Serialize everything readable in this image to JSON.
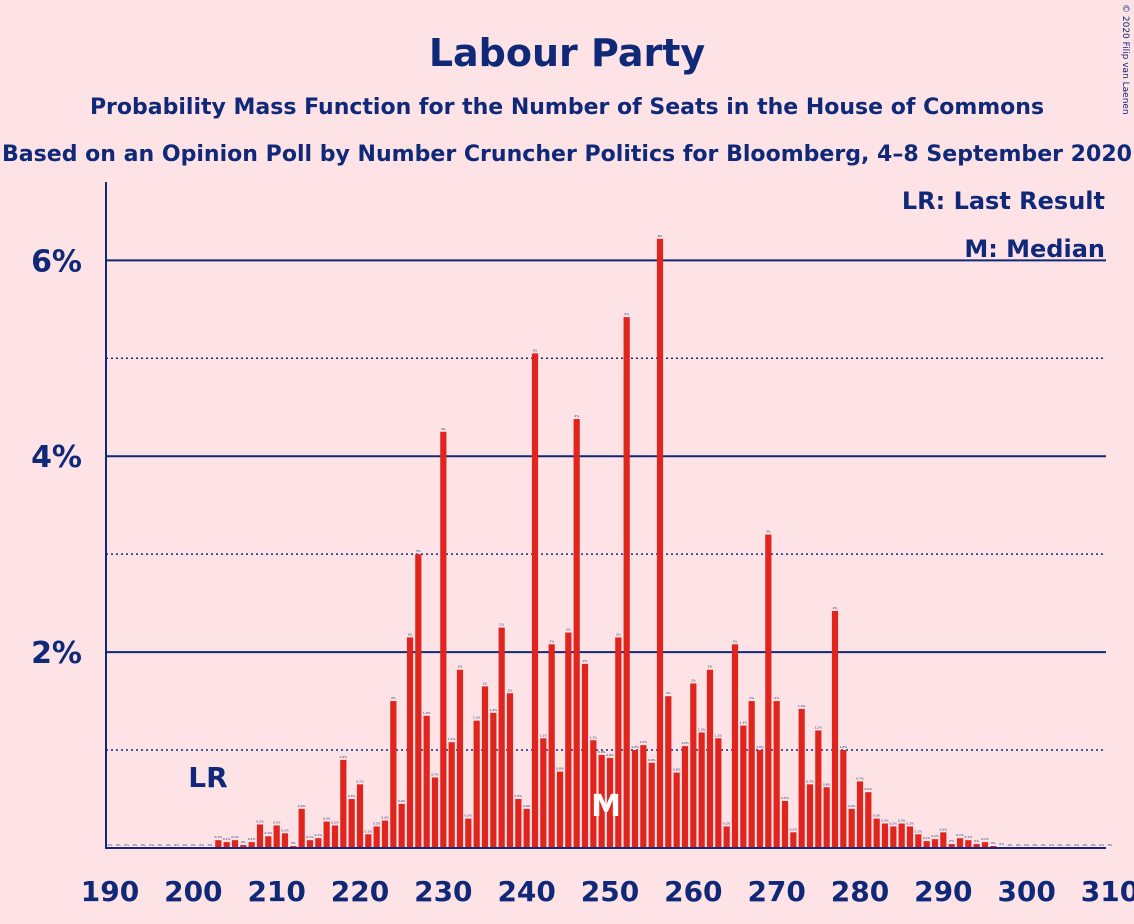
{
  "title": "Labour Party",
  "subtitle1": "Probability Mass Function for the Number of Seats in the House of Commons",
  "subtitle2": "Based on an Opinion Poll by Number Cruncher Politics for Bloomberg, 4–8 September 2020",
  "copyright": "© 2020 Filip van Laenen",
  "legend": {
    "lr": "LR: Last Result",
    "median": "M: Median"
  },
  "markers": {
    "lr_label": "LR",
    "lr_seat": 202,
    "median_label": "M",
    "median_seat": 250
  },
  "colors": {
    "bar": "#E0241E",
    "axis": "#0F2878",
    "background": "#FDE3E6"
  },
  "chart_data": {
    "type": "bar",
    "xlabel": "",
    "ylabel": "",
    "xlim": [
      190,
      310
    ],
    "ylim": [
      0,
      6.8
    ],
    "x_ticks": [
      "190",
      "200",
      "210",
      "220",
      "230",
      "240",
      "250",
      "260",
      "270",
      "280",
      "290",
      "300",
      "310"
    ],
    "y_ticks": [
      {
        "value": 2,
        "label": "2%"
      },
      {
        "value": 4,
        "label": "4%"
      },
      {
        "value": 6,
        "label": "6%"
      }
    ],
    "minor_gridlines": [
      1,
      3,
      5
    ],
    "seats": [
      190,
      191,
      192,
      193,
      194,
      195,
      196,
      197,
      198,
      199,
      200,
      201,
      202,
      203,
      204,
      205,
      206,
      207,
      208,
      209,
      210,
      211,
      212,
      213,
      214,
      215,
      216,
      217,
      218,
      219,
      220,
      221,
      222,
      223,
      224,
      225,
      226,
      227,
      228,
      229,
      230,
      231,
      232,
      233,
      234,
      235,
      236,
      237,
      238,
      239,
      240,
      241,
      242,
      243,
      244,
      245,
      246,
      247,
      248,
      249,
      250,
      251,
      252,
      253,
      254,
      255,
      256,
      257,
      258,
      259,
      260,
      261,
      262,
      263,
      264,
      265,
      266,
      267,
      268,
      269,
      270,
      271,
      272,
      273,
      274,
      275,
      276,
      277,
      278,
      279,
      280,
      281,
      282,
      283,
      284,
      285,
      286,
      287,
      288,
      289,
      290,
      291,
      292,
      293,
      294,
      295,
      296,
      297,
      298,
      299,
      300,
      301,
      302,
      303,
      304,
      305,
      306,
      307,
      308,
      309,
      310
    ],
    "values": [
      0,
      0,
      0,
      0,
      0,
      0,
      0,
      0,
      0,
      0,
      0,
      0,
      0,
      0.08,
      0.06,
      0.08,
      0.03,
      0.06,
      0.24,
      0.12,
      0.23,
      0.15,
      0.02,
      0.4,
      0.08,
      0.1,
      0.27,
      0.23,
      0.9,
      0.5,
      0.65,
      0.14,
      0.22,
      0.28,
      1.5,
      0.45,
      2.15,
      3,
      1.35,
      0.72,
      4.25,
      1.08,
      1.82,
      0.3,
      1.3,
      1.65,
      1.38,
      2.25,
      1.58,
      0.5,
      0.4,
      5.05,
      1.12,
      2.08,
      0.78,
      2.2,
      4.38,
      1.88,
      1.1,
      0.95,
      0.92,
      2.15,
      5.42,
      1,
      1.05,
      0.87,
      6.22,
      1.55,
      0.77,
      1.04,
      1.68,
      1.18,
      1.82,
      1.12,
      0.22,
      2.08,
      1.25,
      1.5,
      1,
      3.2,
      1.5,
      0.48,
      0.16,
      1.42,
      0.65,
      1.2,
      0.62,
      2.42,
      1,
      0.4,
      0.68,
      0.57,
      0.3,
      0.25,
      0.22,
      0.25,
      0.22,
      0.14,
      0.07,
      0.09,
      0.16,
      0.04,
      0.1,
      0.08,
      0.04,
      0.06,
      0.02,
      0.01,
      0,
      0,
      0,
      0,
      0,
      0,
      0,
      0,
      0,
      0,
      0,
      0,
      0
    ],
    "data_labels": [
      "0%",
      "0%",
      "0%",
      "0%",
      "0%",
      "0%",
      "0%",
      "0%",
      "0%",
      "0%",
      "0%",
      "0%",
      "0%",
      "0.1%",
      "0.1%",
      "0.1%",
      "0%",
      "0.1%",
      "0.2%",
      "0.1%",
      "0.2%",
      "0.2%",
      "0%",
      "0.4%",
      "0.1%",
      "0.1%",
      "0.3%",
      "0.2%",
      "0.9%",
      "0.5%",
      "0.7%",
      "0.1%",
      "0.2%",
      "0.3%",
      "2%",
      "0.4%",
      "2%",
      "3%",
      "1.4%",
      "0.7%",
      "4%",
      "1.1%",
      "2%",
      "0.3%",
      "1.3%",
      "2%",
      "1.4%",
      "2%",
      "2%",
      "0.5%",
      "0.4%",
      "5%",
      "1.1%",
      "2%",
      "0.8%",
      "2%",
      "4%",
      "2%",
      "1.1%",
      "0.9%",
      "0.9%",
      "2%",
      "5%",
      "1.0%",
      "1.0%",
      "0.9%",
      "6%",
      "2%",
      "0.8%",
      "1.0%",
      "2%",
      "1.2%",
      "2%",
      "1.1%",
      "0.2%",
      "2%",
      "1.3%",
      "2%",
      "1.0%",
      "3%",
      "2%",
      "0.5%",
      "0.2%",
      "1.4%",
      "0.7%",
      "1.2%",
      "0.6%",
      "2%",
      "1.0%",
      "0.4%",
      "0.7%",
      "0.6%",
      "0.3%",
      "0.3%",
      "0.2%",
      "0.3%",
      "0.2%",
      "0.1%",
      "0.1%",
      "0.1%",
      "0.2%",
      "0%",
      "0.1%",
      "0.1%",
      "0%",
      "0.1%",
      "0%",
      "0%",
      "0%",
      "0%",
      "0%",
      "0%",
      "0%",
      "0%",
      "0%",
      "0%",
      "0%",
      "0%",
      "0%",
      "0%",
      "0%"
    ]
  }
}
